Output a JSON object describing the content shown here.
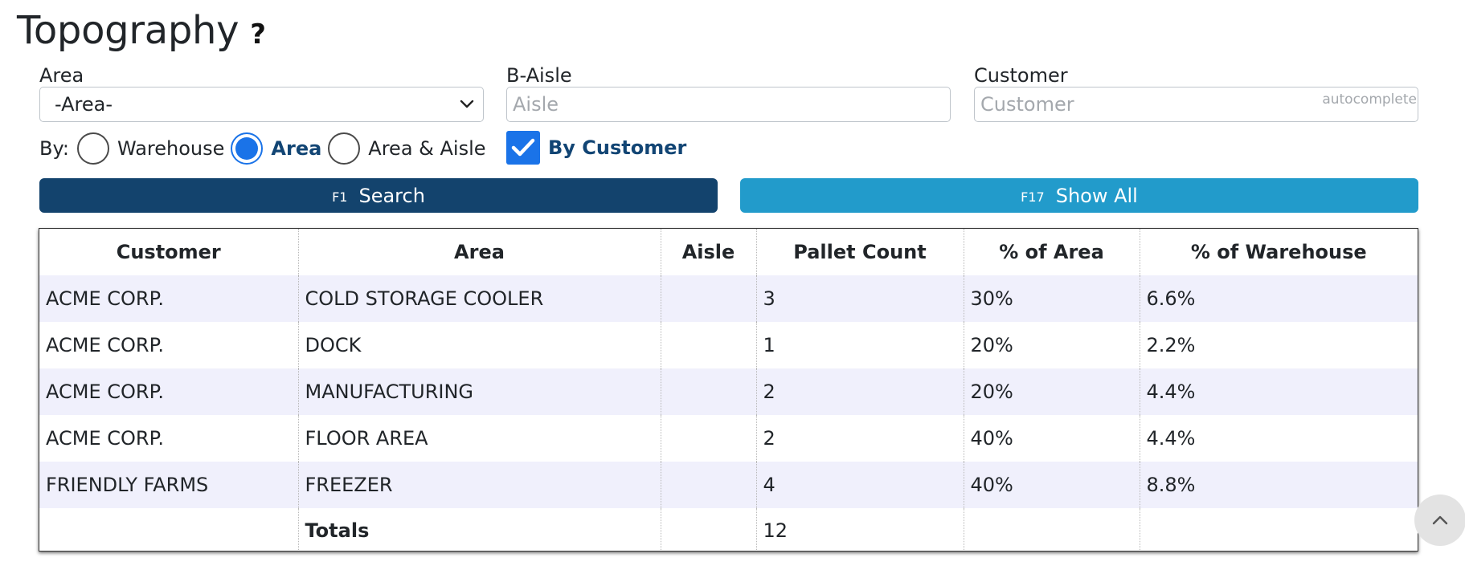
{
  "page": {
    "title": "Topography",
    "help_symbol": "?"
  },
  "filters": {
    "area": {
      "label": "Area",
      "selected": "-Area-"
    },
    "aisle": {
      "label": "B-Aisle",
      "placeholder": "Aisle",
      "value": ""
    },
    "customer": {
      "label": "Customer",
      "placeholder": "Customer",
      "value": "",
      "hint": "autocomplete"
    }
  },
  "grouping": {
    "label": "By:",
    "options": [
      {
        "label": "Warehouse",
        "checked": false
      },
      {
        "label": "Area",
        "checked": true
      },
      {
        "label": "Area & Aisle",
        "checked": false
      }
    ],
    "by_customer": {
      "label": "By Customer",
      "checked": true
    }
  },
  "actions": {
    "search": {
      "key": "F1",
      "label": "Search",
      "color": "#13436d"
    },
    "show_all": {
      "key": "F17",
      "label": "Show All",
      "color": "#229bcb"
    }
  },
  "table": {
    "columns": [
      "Customer",
      "Area",
      "Aisle",
      "Pallet Count",
      "% of Area",
      "% of Warehouse"
    ],
    "rows": [
      [
        "ACME CORP.",
        "COLD STORAGE COOLER",
        "",
        "3",
        "30%",
        "6.6%"
      ],
      [
        "ACME CORP.",
        "DOCK",
        "",
        "1",
        "20%",
        "2.2%"
      ],
      [
        "ACME CORP.",
        "MANUFACTURING",
        "",
        "2",
        "20%",
        "4.4%"
      ],
      [
        "ACME CORP.",
        "FLOOR AREA",
        "",
        "2",
        "40%",
        "4.4%"
      ],
      [
        "FRIENDLY FARMS",
        "FREEZER",
        "",
        "4",
        "40%",
        "8.8%"
      ]
    ],
    "totals": {
      "label": "Totals",
      "pallet_count": "12"
    }
  },
  "colors": {
    "accent": "#1a73e8",
    "row_stripe": "#f0f0fc",
    "active_label": "#124574"
  }
}
